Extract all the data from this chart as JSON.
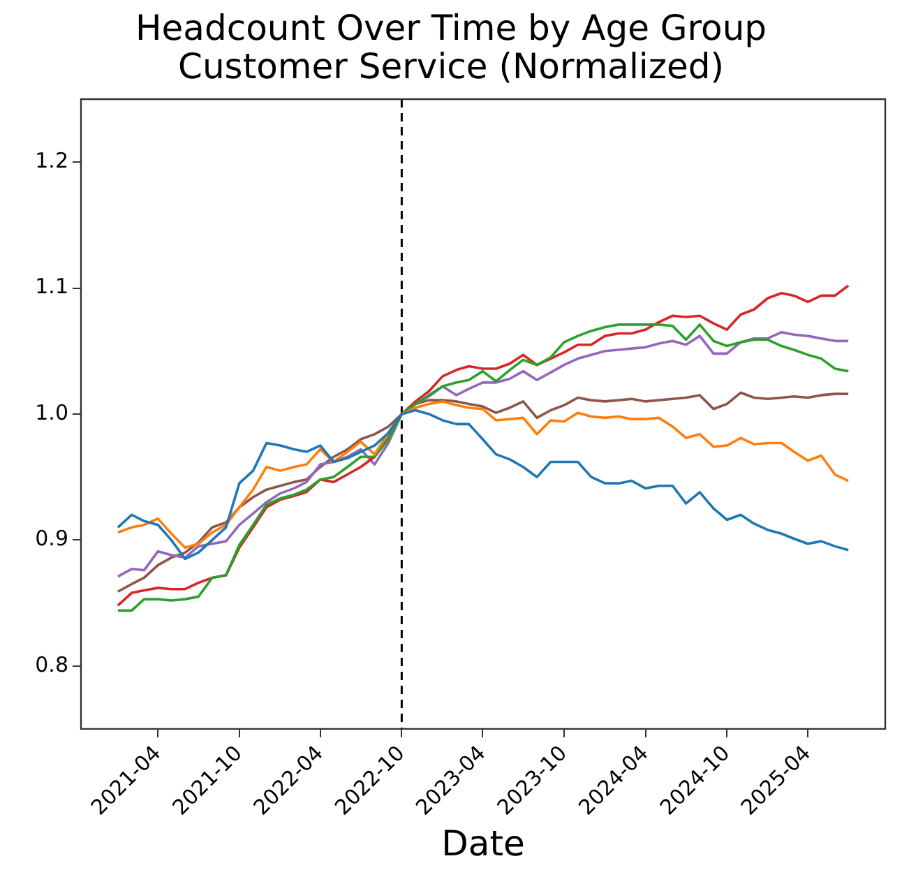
{
  "chart_data": {
    "type": "line",
    "title": "Headcount Over Time by Age Group\nCustomer Service (Normalized)",
    "xlabel": "Date",
    "x": [
      "2021-01",
      "2021-02",
      "2021-03",
      "2021-04",
      "2021-05",
      "2021-06",
      "2021-07",
      "2021-08",
      "2021-09",
      "2021-10",
      "2021-11",
      "2021-12",
      "2022-01",
      "2022-02",
      "2022-03",
      "2022-04",
      "2022-05",
      "2022-06",
      "2022-07",
      "2022-08",
      "2022-09",
      "2022-10",
      "2022-11",
      "2022-12",
      "2023-01",
      "2023-02",
      "2023-03",
      "2023-04",
      "2023-05",
      "2023-06",
      "2023-07",
      "2023-08",
      "2023-09",
      "2023-10",
      "2023-11",
      "2023-12",
      "2024-01",
      "2024-02",
      "2024-03",
      "2024-04",
      "2024-05",
      "2024-06",
      "2024-07",
      "2024-08",
      "2024-09",
      "2024-10",
      "2024-11",
      "2024-12",
      "2025-01",
      "2025-02",
      "2025-03",
      "2025-04",
      "2025-05",
      "2025-06",
      "2025-07"
    ],
    "series": [
      {
        "color": "#1f77b4",
        "values": [
          0.91,
          0.92,
          0.915,
          0.912,
          0.9,
          0.885,
          0.89,
          0.9,
          0.91,
          0.945,
          0.955,
          0.977,
          0.975,
          0.972,
          0.97,
          0.975,
          0.962,
          0.965,
          0.97,
          0.975,
          0.985,
          1.0,
          1.003,
          1.0,
          0.995,
          0.992,
          0.992,
          0.98,
          0.968,
          0.964,
          0.958,
          0.95,
          0.962,
          0.962,
          0.962,
          0.95,
          0.945,
          0.945,
          0.947,
          0.941,
          0.943,
          0.943,
          0.929,
          0.938,
          0.925,
          0.916,
          0.92,
          0.913,
          0.908,
          0.905,
          0.901,
          0.897,
          0.899,
          0.895,
          0.892
        ]
      },
      {
        "color": "#ff7f0e",
        "values": [
          0.906,
          0.91,
          0.912,
          0.917,
          0.905,
          0.894,
          0.897,
          0.906,
          0.912,
          0.926,
          0.94,
          0.958,
          0.955,
          0.958,
          0.96,
          0.972,
          0.962,
          0.97,
          0.978,
          0.968,
          0.985,
          1.0,
          1.005,
          1.008,
          1.01,
          1.007,
          1.005,
          1.004,
          0.995,
          0.996,
          0.997,
          0.984,
          0.995,
          0.994,
          1.001,
          0.998,
          0.997,
          0.998,
          0.996,
          0.996,
          0.997,
          0.99,
          0.981,
          0.984,
          0.974,
          0.975,
          0.981,
          0.976,
          0.977,
          0.977,
          0.97,
          0.963,
          0.967,
          0.952,
          0.947
        ]
      },
      {
        "color": "#2ca02c",
        "values": [
          0.844,
          0.844,
          0.853,
          0.853,
          0.852,
          0.853,
          0.855,
          0.87,
          0.872,
          0.896,
          0.912,
          0.928,
          0.933,
          0.936,
          0.94,
          0.948,
          0.95,
          0.958,
          0.966,
          0.966,
          0.98,
          1.0,
          1.008,
          1.015,
          1.022,
          1.025,
          1.027,
          1.034,
          1.026,
          1.035,
          1.043,
          1.039,
          1.045,
          1.057,
          1.062,
          1.066,
          1.069,
          1.071,
          1.071,
          1.071,
          1.071,
          1.07,
          1.059,
          1.071,
          1.058,
          1.054,
          1.057,
          1.059,
          1.059,
          1.054,
          1.051,
          1.047,
          1.044,
          1.036,
          1.034
        ]
      },
      {
        "color": "#d62728",
        "values": [
          0.848,
          0.858,
          0.86,
          0.862,
          0.861,
          0.861,
          0.866,
          0.87,
          0.872,
          0.894,
          0.91,
          0.926,
          0.932,
          0.935,
          0.938,
          0.948,
          0.946,
          0.952,
          0.958,
          0.966,
          0.981,
          1.0,
          1.01,
          1.018,
          1.03,
          1.035,
          1.038,
          1.036,
          1.036,
          1.04,
          1.047,
          1.039,
          1.044,
          1.049,
          1.055,
          1.055,
          1.062,
          1.064,
          1.064,
          1.067,
          1.073,
          1.078,
          1.077,
          1.078,
          1.072,
          1.067,
          1.079,
          1.083,
          1.092,
          1.096,
          1.094,
          1.089,
          1.094,
          1.094,
          1.102
        ]
      },
      {
        "color": "#9467bd",
        "values": [
          0.871,
          0.877,
          0.876,
          0.891,
          0.888,
          0.886,
          0.895,
          0.897,
          0.899,
          0.912,
          0.921,
          0.93,
          0.937,
          0.941,
          0.946,
          0.96,
          0.962,
          0.966,
          0.972,
          0.96,
          0.977,
          1.0,
          1.008,
          1.014,
          1.022,
          1.015,
          1.02,
          1.025,
          1.025,
          1.028,
          1.034,
          1.027,
          1.033,
          1.039,
          1.044,
          1.047,
          1.05,
          1.051,
          1.052,
          1.053,
          1.056,
          1.058,
          1.055,
          1.062,
          1.048,
          1.048,
          1.057,
          1.06,
          1.06,
          1.065,
          1.063,
          1.062,
          1.06,
          1.058,
          1.058
        ]
      },
      {
        "color": "#8c564b",
        "values": [
          0.859,
          0.865,
          0.87,
          0.88,
          0.886,
          0.89,
          0.898,
          0.91,
          0.914,
          0.926,
          0.934,
          0.94,
          0.943,
          0.946,
          0.948,
          0.958,
          0.966,
          0.972,
          0.98,
          0.984,
          0.99,
          1.0,
          1.008,
          1.011,
          1.011,
          1.01,
          1.008,
          1.006,
          1.001,
          1.005,
          1.01,
          0.997,
          1.003,
          1.007,
          1.013,
          1.011,
          1.01,
          1.011,
          1.012,
          1.01,
          1.011,
          1.012,
          1.013,
          1.015,
          1.004,
          1.008,
          1.017,
          1.013,
          1.012,
          1.013,
          1.014,
          1.013,
          1.015,
          1.016,
          1.016
        ]
      }
    ],
    "xlim": [
      "2020-10-10",
      "2025-09-22"
    ],
    "xticks": [
      "2021-04",
      "2021-10",
      "2022-04",
      "2022-10",
      "2023-04",
      "2023-10",
      "2024-04",
      "2024-10",
      "2025-04"
    ],
    "ylim": [
      0.75,
      1.25
    ],
    "yticks": [
      0.8,
      0.9,
      {
        "value": 1,
        "label": "1.0"
      },
      1.1,
      1.2
    ],
    "ref_lines": [
      {
        "axis": "x",
        "value": "2022-10",
        "color": "#000000",
        "line_style": "dashed"
      }
    ],
    "grid": false,
    "legend": false,
    "marker": "none",
    "line_style": "solid"
  }
}
